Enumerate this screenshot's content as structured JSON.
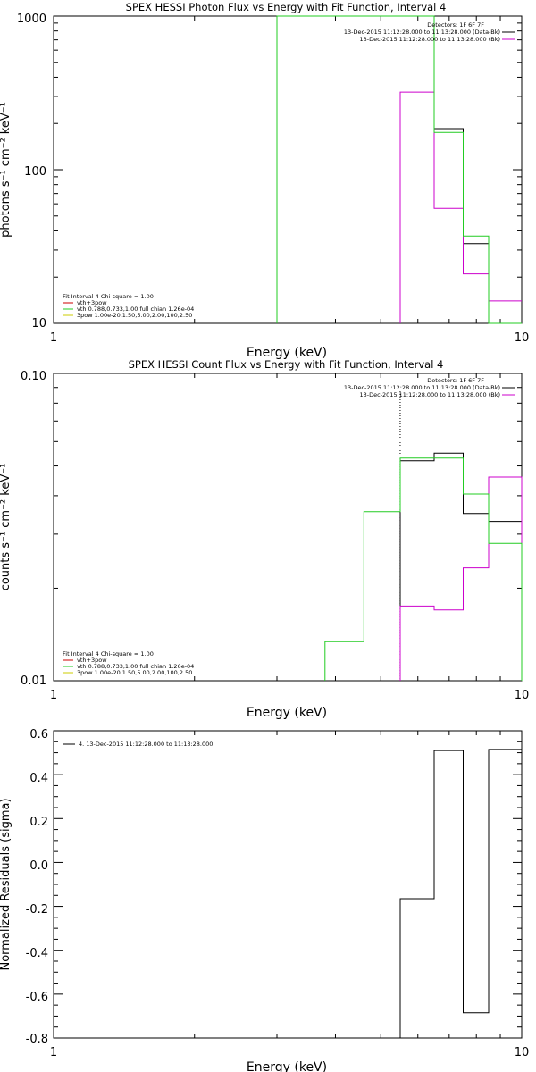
{
  "charts": [
    {
      "title": "SPEX HESSI Photon Flux vs Energy with Fit Function, Interval 4",
      "xlabel": "Energy (keV)",
      "ylabel": "photons s⁻¹ cm⁻² keV⁻¹",
      "xticks": [
        "1",
        "10"
      ],
      "yticks": [
        "10",
        "100",
        "1000"
      ],
      "legend": [
        "Detectors: 1F 6F 7F",
        "13-Dec-2015 11:12:28.000 to 11:13:28.000 (Data-Bk)",
        "13-Dec-2015 11:12:28.000 to 11:13:28.000 (Bk)"
      ],
      "fit_text": [
        "Fit Interval 4   Chi-square = 1.00",
        "vth+3pow",
        "vth 0.788,0.733,1.00  full chian 1.26e-04",
        "3pow 1.00e-20,1.50,5.00,2.00,100,2.50"
      ]
    },
    {
      "title": "SPEX HESSI Count Flux vs Energy with Fit Function, Interval 4",
      "xlabel": "Energy (keV)",
      "ylabel": "counts s⁻¹ cm⁻² keV⁻¹",
      "xticks": [
        "1",
        "10"
      ],
      "yticks": [
        "0.01",
        "0.10"
      ],
      "legend": [
        "Detectors: 1F 6F 7F",
        "13-Dec-2015 11:12:28.000 to 11:13:28.000 (Data-Bk)",
        "13-Dec-2015 11:12:28.000 to 11:13:28.000 (Bk)"
      ],
      "fit_text": [
        "Fit Interval 4   Chi-square = 1.00",
        "vth+3pow",
        "vth 0.788,0.733,1.00  full chian 1.26e-04",
        "3pow 1.00e-20,1.50,5.00,2.00,100,2.50"
      ]
    },
    {
      "title": "",
      "xlabel": "Energy (keV)",
      "ylabel": "Normalized Residuals (sigma)",
      "xticks": [
        "1",
        "10"
      ],
      "yticks": [
        "0.6",
        "0.4",
        "0.2",
        "0.0",
        "-0.2",
        "-0.4",
        "-0.6",
        "-0.8"
      ],
      "legend": [
        "4. 13-Dec-2015 11:12:28.000 to 11:13:28.000"
      ]
    }
  ],
  "colors": {
    "black": "#000000",
    "magenta": "#cc00cc",
    "green": "#22cc22",
    "red": "#cc0000",
    "yellow": "#cccc00"
  },
  "chart_data": [
    {
      "type": "line",
      "xscale": "log",
      "yscale": "log",
      "xlim": [
        1,
        10
      ],
      "ylim": [
        10,
        1000
      ],
      "series": [
        {
          "color": "black",
          "x": [
            5.5,
            6.5,
            6.5,
            7.5,
            7.5,
            8.5,
            8.5,
            10
          ],
          "y": [
            1000,
            1000,
            185,
            185,
            33,
            33,
            10,
            10
          ]
        },
        {
          "color": "magenta",
          "x": [
            5.5,
            5.5,
            6.5,
            6.5,
            7.5,
            7.5,
            8.5,
            8.5,
            10
          ],
          "y": [
            10,
            320,
            320,
            56,
            56,
            21,
            21,
            14,
            14
          ]
        },
        {
          "color": "green",
          "x": [
            3,
            3,
            3,
            5.5,
            5.5,
            6.5,
            6.5,
            7.5,
            7.5,
            8.5,
            8.5,
            10
          ],
          "y": [
            10,
            1000,
            1000,
            1000,
            1000,
            1000,
            175,
            175,
            37,
            37,
            10,
            10
          ]
        }
      ]
    },
    {
      "type": "line",
      "xscale": "log",
      "yscale": "log",
      "xlim": [
        1,
        10
      ],
      "ylim": [
        0.01,
        0.1
      ],
      "marker_x": 5.5,
      "series": [
        {
          "color": "black",
          "x": [
            5.5,
            5.5,
            6.5,
            6.5,
            7.5,
            7.5,
            8.5,
            8.5,
            10
          ],
          "y": [
            0.01,
            0.052,
            0.052,
            0.055,
            0.055,
            0.035,
            0.035,
            0.033,
            0.033
          ]
        },
        {
          "color": "magenta",
          "x": [
            5.5,
            5.5,
            6.5,
            6.5,
            7.5,
            7.5,
            8.5,
            8.5,
            10,
            10
          ],
          "y": [
            0.01,
            0.0175,
            0.0175,
            0.017,
            0.017,
            0.0233,
            0.0233,
            0.046,
            0.046,
            0.01
          ]
        },
        {
          "color": "green",
          "x": [
            3.8,
            3.8,
            4.6,
            4.6,
            5.5,
            5.5,
            6.5,
            6.5,
            7.5,
            7.5,
            8.5,
            8.5,
            10,
            10
          ],
          "y": [
            0.01,
            0.0134,
            0.0134,
            0.0355,
            0.0355,
            0.053,
            0.053,
            0.053,
            0.053,
            0.0405,
            0.0405,
            0.028,
            0.028,
            0.01
          ]
        }
      ]
    },
    {
      "type": "line",
      "xscale": "log",
      "yscale": "linear",
      "xlim": [
        1,
        10
      ],
      "ylim": [
        -0.8,
        0.6
      ],
      "series": [
        {
          "color": "black",
          "x": [
            5.5,
            5.5,
            6.5,
            6.5,
            7.5,
            7.5,
            8.5,
            8.5,
            10
          ],
          "y": [
            -0.8,
            -0.165,
            -0.165,
            0.51,
            0.51,
            -0.685,
            -0.685,
            0.515,
            0.515
          ]
        }
      ]
    }
  ]
}
